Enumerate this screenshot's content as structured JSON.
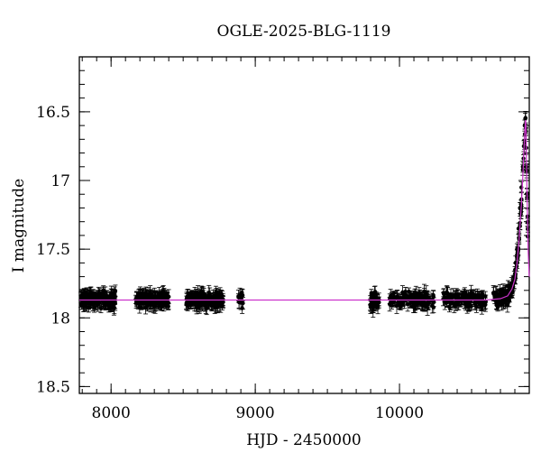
{
  "chart_data": {
    "type": "scatter",
    "title": "OGLE-2025-BLG-1119",
    "xlabel": "HJD - 2450000",
    "ylabel": "I magnitude",
    "xlim": [
      7780,
      10900
    ],
    "ylim": [
      18.55,
      16.1
    ],
    "y_inverted": true,
    "grid": false,
    "x_ticks": [
      8000,
      9000,
      10000
    ],
    "x_tick_labels": [
      "8000",
      "9000",
      "10000"
    ],
    "y_ticks": [
      16.5,
      17,
      17.5,
      18,
      18.5
    ],
    "y_tick_labels": [
      "16.5",
      "17",
      "17.5",
      "18",
      "18.5"
    ],
    "x_minor_step": 100,
    "y_minor_step": 0.1,
    "colors": {
      "points": "#000000",
      "model": "#cc33cc",
      "axes": "#000000"
    },
    "series": [
      {
        "marker": "filled-circle-with-errorbars",
        "baseline_magnitude": 17.87,
        "seasons": [
          {
            "x_range": [
              7790,
              8030
            ],
            "n": 180
          },
          {
            "x_range": [
              8170,
              8400
            ],
            "n": 150
          },
          {
            "x_range": [
              8520,
              8780
            ],
            "n": 150
          },
          {
            "x_range": [
              8880,
              8920
            ],
            "n": 10
          },
          {
            "x_range": [
              9795,
              9860
            ],
            "n": 40
          },
          {
            "x_range": [
              9930,
              10240
            ],
            "n": 120
          },
          {
            "x_range": [
              10300,
              10600
            ],
            "n": 120
          },
          {
            "x_range": [
              10650,
              10890
            ],
            "n": 140
          }
        ],
        "points": [
          [
            7800,
            17.86
          ],
          [
            7850,
            17.88
          ],
          [
            7900,
            17.87
          ],
          [
            7950,
            17.89
          ],
          [
            8000,
            17.88
          ],
          [
            8020,
            17.93
          ],
          [
            8200,
            17.87
          ],
          [
            8250,
            17.89
          ],
          [
            8300,
            17.86
          ],
          [
            8350,
            17.88
          ],
          [
            8390,
            17.87
          ],
          [
            8550,
            17.86
          ],
          [
            8600,
            17.88
          ],
          [
            8650,
            17.87
          ],
          [
            8700,
            17.9
          ],
          [
            8760,
            17.91
          ],
          [
            8900,
            17.89
          ],
          [
            9820,
            17.88
          ],
          [
            9850,
            17.92
          ],
          [
            10000,
            17.87
          ],
          [
            10100,
            17.88
          ],
          [
            10200,
            17.89
          ],
          [
            10350,
            17.87
          ],
          [
            10450,
            17.88
          ],
          [
            10550,
            17.88
          ],
          [
            10700,
            17.87
          ],
          [
            10760,
            17.83
          ],
          [
            10790,
            17.75
          ],
          [
            10805,
            17.6
          ],
          [
            10815,
            17.5
          ],
          [
            10825,
            17.35
          ],
          [
            10835,
            17.2
          ],
          [
            10845,
            17.05
          ],
          [
            10855,
            16.9
          ],
          [
            10862,
            16.75
          ],
          [
            10868,
            16.6
          ],
          [
            10872,
            16.55
          ],
          [
            10876,
            16.62
          ],
          [
            10880,
            16.9
          ],
          [
            10885,
            17.1
          ],
          [
            10890,
            17.3
          ]
        ]
      },
      {
        "type": "line",
        "role": "model",
        "points": [
          [
            7780,
            17.87
          ],
          [
            10600,
            17.87
          ],
          [
            10700,
            17.86
          ],
          [
            10750,
            17.84
          ],
          [
            10780,
            17.79
          ],
          [
            10800,
            17.72
          ],
          [
            10815,
            17.6
          ],
          [
            10830,
            17.42
          ],
          [
            10845,
            17.18
          ],
          [
            10856,
            16.95
          ],
          [
            10864,
            16.76
          ],
          [
            10870,
            16.62
          ],
          [
            10874,
            16.56
          ],
          [
            10877,
            16.6
          ],
          [
            10880,
            16.8
          ],
          [
            10884,
            17.05
          ],
          [
            10888,
            17.3
          ],
          [
            10892,
            17.5
          ],
          [
            10896,
            17.62
          ],
          [
            10900,
            17.7
          ]
        ]
      }
    ]
  }
}
